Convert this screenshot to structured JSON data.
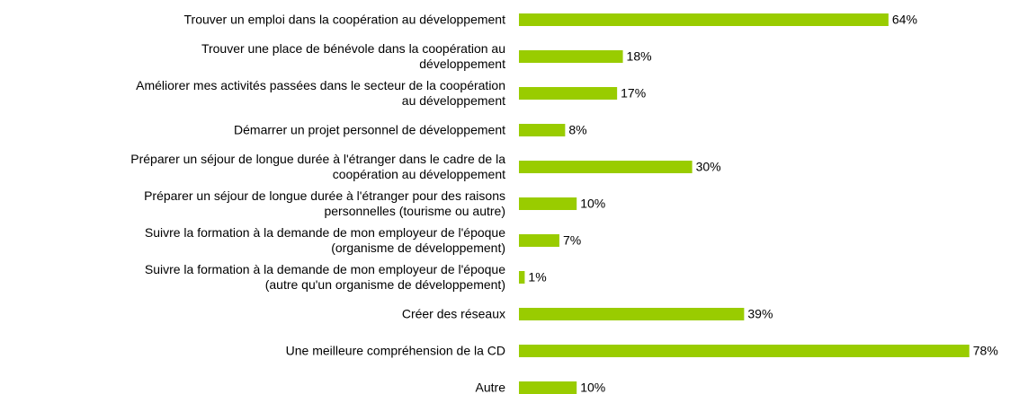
{
  "chart_data": {
    "type": "barh",
    "categories": [
      "Trouver un emploi dans la coopération au développement",
      "Trouver une place de bénévole dans la coopération au\ndéveloppement",
      "Améliorer mes activités passées dans le secteur de la coopération\nau développement",
      "Démarrer un projet personnel de développement",
      "Préparer un séjour de longue durée à l'étranger dans le cadre de la\ncoopération au développement",
      "Préparer un séjour de longue durée à l'étranger pour des raisons\npersonnelles (tourisme ou autre)",
      "Suivre la formation à la demande de mon employeur de l'époque\n(organisme de développement)",
      "Suivre la formation à la demande de mon employeur de l'époque\n(autre qu'un organisme de développement)",
      "Créer des réseaux",
      "Une meilleure compréhension de la CD",
      "Autre"
    ],
    "values": [
      64,
      18,
      17,
      8,
      30,
      10,
      7,
      1,
      39,
      78,
      10
    ],
    "value_labels": [
      "64%",
      "18%",
      "17%",
      "8%",
      "30%",
      "10%",
      "7%",
      "1%",
      "39%",
      "78%",
      "10%"
    ],
    "color": "#99cc00"
  }
}
